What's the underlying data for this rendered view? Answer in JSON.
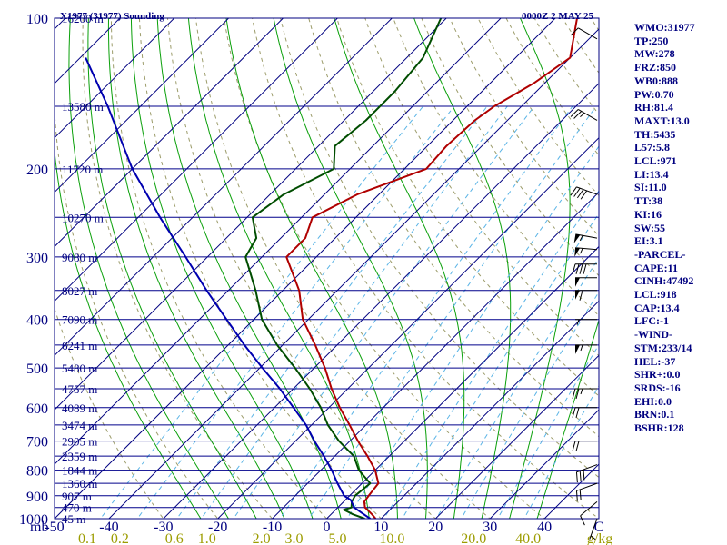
{
  "header": {
    "station_title": "X1977 (31977) Sounding",
    "time_label": "0000Z  2 MAY 25"
  },
  "stats": [
    "WMO:31977",
    "TP:250",
    "MW:278",
    "FRZ:850",
    "WB0:888",
    "PW:0.70",
    "RH:81.4",
    "MAXT:13.0",
    "TH:5435",
    "L57:5.8",
    "LCL:971",
    "LI:13.4",
    "SI:11.0",
    "TT:38",
    "KI:16",
    "SW:55",
    "EI:3.1",
    "-PARCEL-",
    "CAPE:11",
    "CINH:47492",
    "LCL:918",
    "CAP:13.4",
    "LFC:-1",
    "-WIND-",
    "STM:233/14",
    "HEL:-37",
    "SHR+:0.0",
    "SRDS:-16",
    "EHI:0.0",
    "BRN:0.1",
    "BSHR:128"
  ],
  "colors": {
    "isobar": "#00008b",
    "isotherm": "#000080",
    "dry_adiabat": "#9c9c6a",
    "moist_adiabat": "#0aa00a",
    "mixing_ratio": "#5ab4e6",
    "temperature": "#b00000",
    "dewpoint": "#004d00",
    "parcel": "#0000b0",
    "wind_barb": "#000000",
    "label": "#000080",
    "mr_label": "#9c9c00"
  },
  "chart_data": {
    "type": "skew-t",
    "x_unit": "°C",
    "y_unit": "mb",
    "xlim": [
      -50,
      50
    ],
    "ylim": [
      1000,
      100
    ],
    "pressure_ticks": [
      {
        "p": 1000,
        "label": "1000"
      },
      {
        "p": 900,
        "label": "900"
      },
      {
        "p": 800,
        "label": "800"
      },
      {
        "p": 700,
        "label": "700"
      },
      {
        "p": 600,
        "label": "600"
      },
      {
        "p": 500,
        "label": "500"
      },
      {
        "p": 400,
        "label": "400"
      },
      {
        "p": 300,
        "label": "300"
      },
      {
        "p": 200,
        "label": "200"
      },
      {
        "p": 100,
        "label": "100"
      }
    ],
    "temperature_ticks": [
      {
        "t": -50,
        "label": "-50"
      },
      {
        "t": -40,
        "label": "-40"
      },
      {
        "t": -30,
        "label": "-30"
      },
      {
        "t": -20,
        "label": "-20"
      },
      {
        "t": -10,
        "label": "-10"
      },
      {
        "t": 0,
        "label": "0"
      },
      {
        "t": 10,
        "label": "10"
      },
      {
        "t": 20,
        "label": "20"
      },
      {
        "t": 30,
        "label": "30"
      },
      {
        "t": 40,
        "label": "40"
      },
      {
        "t": 50,
        "label": "C"
      }
    ],
    "corner_unit_label": "mb",
    "mixing_ratio_unit_label": "g/kg",
    "mixing_ratio_labels": [
      {
        "t": -44,
        "label": "0.1"
      },
      {
        "t": -38,
        "label": "0.2"
      },
      {
        "t": -28,
        "label": "0.6"
      },
      {
        "t": -22,
        "label": "1.0"
      },
      {
        "t": -12,
        "label": "2.0"
      },
      {
        "t": -6,
        "label": "3.0"
      },
      {
        "t": 2,
        "label": "5.0"
      },
      {
        "t": 12,
        "label": "10.0"
      },
      {
        "t": 27,
        "label": "20.0"
      },
      {
        "t": 37,
        "label": "40.0"
      }
    ],
    "height_labels": [
      {
        "p": 1000,
        "label": "45 m"
      },
      {
        "p": 950,
        "label": "470 m"
      },
      {
        "p": 900,
        "label": "907 m"
      },
      {
        "p": 850,
        "label": "1360 m"
      },
      {
        "p": 800,
        "label": "1844 m"
      },
      {
        "p": 750,
        "label": "2359 m"
      },
      {
        "p": 700,
        "label": "2905 m"
      },
      {
        "p": 650,
        "label": "3474 m"
      },
      {
        "p": 600,
        "label": "4089 m"
      },
      {
        "p": 550,
        "label": "4757 m"
      },
      {
        "p": 500,
        "label": "5480 m"
      },
      {
        "p": 450,
        "label": "6241 m"
      },
      {
        "p": 400,
        "label": "7090 m"
      },
      {
        "p": 350,
        "label": "8027 m"
      },
      {
        "p": 300,
        "label": "9080 m"
      },
      {
        "p": 250,
        "label": "10270 m"
      },
      {
        "p": 200,
        "label": "11720 m"
      },
      {
        "p": 150,
        "label": "13580 m"
      },
      {
        "p": 100,
        "label": "16200 m"
      }
    ],
    "series": [
      {
        "key": "temperature",
        "points": [
          {
            "p": 1000,
            "t": 9.0
          },
          {
            "p": 980,
            "t": 7.5
          },
          {
            "p": 950,
            "t": 5.0
          },
          {
            "p": 925,
            "t": 3.8
          },
          {
            "p": 900,
            "t": 3.5
          },
          {
            "p": 850,
            "t": 3.0
          },
          {
            "p": 800,
            "t": 0.0
          },
          {
            "p": 750,
            "t": -4.0
          },
          {
            "p": 700,
            "t": -8.5
          },
          {
            "p": 650,
            "t": -13.0
          },
          {
            "p": 600,
            "t": -18.0
          },
          {
            "p": 550,
            "t": -23.0
          },
          {
            "p": 500,
            "t": -28.0
          },
          {
            "p": 450,
            "t": -34.0
          },
          {
            "p": 400,
            "t": -41.0
          },
          {
            "p": 350,
            "t": -47.0
          },
          {
            "p": 300,
            "t": -55.5
          },
          {
            "p": 275,
            "t": -55.5
          },
          {
            "p": 250,
            "t": -58.0
          },
          {
            "p": 225,
            "t": -54.0
          },
          {
            "p": 200,
            "t": -46.0
          },
          {
            "p": 180,
            "t": -46.5
          },
          {
            "p": 160,
            "t": -46.0
          },
          {
            "p": 150,
            "t": -45.0
          },
          {
            "p": 135,
            "t": -42.0
          },
          {
            "p": 120,
            "t": -40.0
          },
          {
            "p": 100,
            "t": -46.0
          }
        ]
      },
      {
        "key": "dewpoint",
        "points": [
          {
            "p": 1000,
            "t": 7.0
          },
          {
            "p": 980,
            "t": 4.0
          },
          {
            "p": 960,
            "t": 1.5
          },
          {
            "p": 950,
            "t": 2.5
          },
          {
            "p": 925,
            "t": 1.5
          },
          {
            "p": 900,
            "t": 1.0
          },
          {
            "p": 850,
            "t": 1.5
          },
          {
            "p": 800,
            "t": -3.0
          },
          {
            "p": 750,
            "t": -6.5
          },
          {
            "p": 700,
            "t": -12.0
          },
          {
            "p": 650,
            "t": -17.0
          },
          {
            "p": 600,
            "t": -21.5
          },
          {
            "p": 550,
            "t": -27.0
          },
          {
            "p": 500,
            "t": -33.5
          },
          {
            "p": 450,
            "t": -41.0
          },
          {
            "p": 400,
            "t": -48.5
          },
          {
            "p": 350,
            "t": -55.0
          },
          {
            "p": 300,
            "t": -63.0
          },
          {
            "p": 275,
            "t": -64.5
          },
          {
            "p": 250,
            "t": -69.0
          },
          {
            "p": 225,
            "t": -67.5
          },
          {
            "p": 200,
            "t": -63.0
          },
          {
            "p": 180,
            "t": -67.0
          },
          {
            "p": 160,
            "t": -66.0
          },
          {
            "p": 140,
            "t": -66.0
          },
          {
            "p": 120,
            "t": -67.0
          },
          {
            "p": 100,
            "t": -71.0
          }
        ]
      },
      {
        "key": "parcel",
        "points": [
          {
            "p": 1000,
            "t": 8.0
          },
          {
            "p": 975,
            "t": 5.5
          },
          {
            "p": 950,
            "t": 3.0
          },
          {
            "p": 918,
            "t": 1.0
          },
          {
            "p": 900,
            "t": -1.0
          },
          {
            "p": 850,
            "t": -4.5
          },
          {
            "p": 800,
            "t": -8.0
          },
          {
            "p": 750,
            "t": -12.0
          },
          {
            "p": 700,
            "t": -16.5
          },
          {
            "p": 650,
            "t": -21.0
          },
          {
            "p": 600,
            "t": -26.5
          },
          {
            "p": 550,
            "t": -32.5
          },
          {
            "p": 500,
            "t": -39.5
          },
          {
            "p": 450,
            "t": -47.0
          },
          {
            "p": 400,
            "t": -55.0
          },
          {
            "p": 350,
            "t": -64.0
          },
          {
            "p": 300,
            "t": -74.0
          },
          {
            "p": 250,
            "t": -86.0
          },
          {
            "p": 200,
            "t": -100.0
          },
          {
            "p": 150,
            "t": -116.0
          },
          {
            "p": 120,
            "t": -129.0
          }
        ]
      }
    ],
    "wind_barbs": [
      {
        "p": 1000,
        "dir": 200,
        "spd": 5
      },
      {
        "p": 925,
        "dir": 230,
        "spd": 10
      },
      {
        "p": 850,
        "dir": 250,
        "spd": 20
      },
      {
        "p": 780,
        "dir": 250,
        "spd": 30
      },
      {
        "p": 700,
        "dir": 270,
        "spd": 20
      },
      {
        "p": 600,
        "dir": 270,
        "spd": 20
      },
      {
        "p": 550,
        "dir": 270,
        "spd": 25
      },
      {
        "p": 450,
        "dir": 270,
        "spd": 55
      },
      {
        "p": 400,
        "dir": 270,
        "spd": 5
      },
      {
        "p": 350,
        "dir": 270,
        "spd": 60
      },
      {
        "p": 330,
        "dir": 270,
        "spd": 50
      },
      {
        "p": 310,
        "dir": 270,
        "spd": 40
      },
      {
        "p": 290,
        "dir": 275,
        "spd": 55
      },
      {
        "p": 275,
        "dir": 280,
        "spd": 55
      },
      {
        "p": 225,
        "dir": 290,
        "spd": 40
      },
      {
        "p": 160,
        "dir": 300,
        "spd": 25
      },
      {
        "p": 110,
        "dir": 300,
        "spd": 10
      }
    ]
  }
}
